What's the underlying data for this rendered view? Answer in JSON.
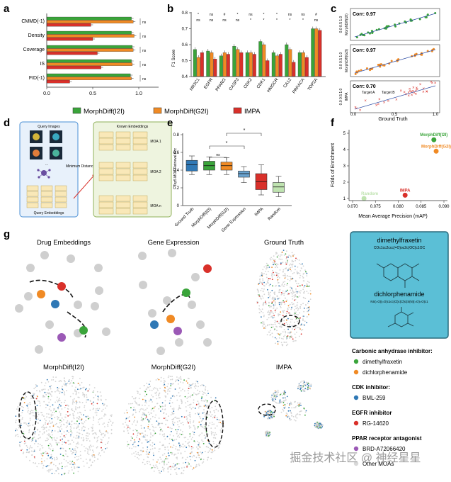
{
  "panel_labels": {
    "a": "a",
    "b": "b",
    "c": "c",
    "d": "d",
    "e": "e",
    "f": "f",
    "g": "g"
  },
  "colors": {
    "green": "#3aa43a",
    "orange": "#f08a24",
    "red": "#d9302a",
    "blue": "#2f78b5",
    "light_green": "#bfe3b0",
    "grey": "#cfcfcf",
    "teal_box": "#5bbfd6"
  },
  "legend_main": {
    "items": [
      {
        "label": "MorphDiff(I2I)",
        "color": "#3aa43a"
      },
      {
        "label": "MorphDiff(G2I)",
        "color": "#f08a24"
      },
      {
        "label": "IMPA",
        "color": "#d9302a"
      }
    ]
  },
  "chart_data": [
    {
      "id": "a",
      "type": "bar",
      "orientation": "horizontal",
      "categories": [
        "CMMD(-1)",
        "Density",
        "Coverage",
        "IS",
        "FID(-1)"
      ],
      "series": [
        {
          "name": "MorphDiff(I2I)",
          "values": [
            0.92,
            0.92,
            0.93,
            0.92,
            0.91
          ]
        },
        {
          "name": "MorphDiff(G2I)",
          "values": [
            0.94,
            0.95,
            0.94,
            0.93,
            0.92
          ]
        },
        {
          "name": "IMPA",
          "values": [
            0.48,
            0.5,
            0.55,
            0.59,
            0.25
          ]
        }
      ],
      "ticks": [
        "0.0",
        "0.5",
        "1.0"
      ],
      "xlim": [
        0,
        1.1
      ],
      "sig": [
        "ns",
        "ns",
        "ns",
        "ns",
        "ns"
      ]
    },
    {
      "id": "b",
      "type": "bar",
      "ylabel": "F1 Score",
      "ylim": [
        0.4,
        0.8
      ],
      "yticks": [
        "0.4",
        "0.5",
        "0.6",
        "0.7",
        "0.8"
      ],
      "categories": [
        "NR3C1",
        "EGFR",
        "PPARG",
        "CASP3",
        "CDK2",
        "CDK1",
        "HMGCR",
        "CA12",
        "PRKACA",
        "TOP2A"
      ],
      "series": [
        {
          "name": "MorphDiff(I2I)",
          "values": [
            0.57,
            0.56,
            0.53,
            0.59,
            0.55,
            0.62,
            0.55,
            0.6,
            0.55,
            0.7
          ]
        },
        {
          "name": "MorphDiff(G2I)",
          "values": [
            0.52,
            0.55,
            0.55,
            0.57,
            0.55,
            0.6,
            0.53,
            0.57,
            0.55,
            0.7
          ]
        },
        {
          "name": "IMPA",
          "values": [
            0.55,
            0.51,
            0.54,
            0.55,
            0.54,
            0.5,
            0.54,
            0.49,
            0.52,
            0.69
          ]
        }
      ],
      "sig_top": [
        "*",
        "ns",
        "#",
        "*",
        "ns",
        "*",
        "*",
        "ns",
        "ns",
        "#"
      ],
      "sig_bottom": [
        "ns",
        "ns",
        "ns",
        "ns",
        "*",
        "*",
        "*",
        "*",
        "*",
        "ns"
      ]
    },
    {
      "id": "c",
      "type": "scatter",
      "xlabel": "Ground Truth",
      "ylabel": "MorphDiff(I2I)",
      "xticks": [
        "0.0",
        "0.5",
        "1.0"
      ],
      "panels": [
        {
          "name": "MorphDiff(I2I)",
          "corr": "Corr: 0.97"
        },
        {
          "name": "MorphDiff(G2I)",
          "corr": "Corr: 0.97"
        },
        {
          "name": "IMPA",
          "corr": "Corr: 0.70",
          "legend": [
            "Target A",
            "Target B"
          ]
        }
      ]
    },
    {
      "id": "e",
      "type": "box",
      "ylabel": "Top5 MOA Retrieval Acc",
      "ylim": [
        0,
        0.8
      ],
      "yticks": [
        "0",
        "0.2",
        "0.4",
        "0.6",
        "0.8"
      ],
      "categories": [
        "Ground Truth",
        "MorphDiff(I2I)",
        "MorphDiff(G2I)",
        "Gene Expression",
        "IMPA",
        "Random"
      ],
      "series": [
        {
          "name": "Ground Truth",
          "q": [
            0.35,
            0.39,
            0.46,
            0.51,
            0.56
          ]
        },
        {
          "name": "MorphDiff(I2I)",
          "q": [
            0.35,
            0.4,
            0.45,
            0.5,
            0.55
          ]
        },
        {
          "name": "MorphDiff(G2I)",
          "q": [
            0.35,
            0.4,
            0.45,
            0.49,
            0.54
          ]
        },
        {
          "name": "Gene Expression",
          "q": [
            0.26,
            0.32,
            0.36,
            0.39,
            0.44
          ]
        },
        {
          "name": "IMPA",
          "q": [
            0.12,
            0.18,
            0.27,
            0.36,
            0.46
          ]
        },
        {
          "name": "Random",
          "q": [
            0.1,
            0.15,
            0.21,
            0.26,
            0.33
          ]
        }
      ],
      "sig": [
        "ns",
        "*",
        "*"
      ]
    },
    {
      "id": "f",
      "type": "scatter",
      "xlabel": "Mean Average Precision (mAP)",
      "ylabel": "Folds of Enrichment",
      "xlim": [
        0.07,
        0.09
      ],
      "ylim": [
        1,
        5
      ],
      "xticks": [
        "0.070",
        "0.075",
        "0.080",
        "0.085",
        "0.090"
      ],
      "yticks": [
        "1",
        "2",
        "3",
        "4",
        "5"
      ],
      "points": [
        {
          "name": "MorphDiff(I2I)",
          "x": 0.0878,
          "y": 4.6
        },
        {
          "name": "MorphDiff(G2I)",
          "x": 0.0883,
          "y": 3.9
        },
        {
          "name": "IMPA",
          "x": 0.0815,
          "y": 1.2
        },
        {
          "name": "Random",
          "x": 0.0725,
          "y": 1.0
        }
      ]
    }
  ],
  "panel_d": {
    "query_images": "Query Images",
    "known_embeddings": "Known Embeddings",
    "query_embeddings": "Query Embeddings",
    "minimum_distance": "Minimum Distance",
    "moa": [
      "MOA 1",
      "MOA 2",
      "MOA n"
    ],
    "ellipsis": "..."
  },
  "panel_g": {
    "titles": [
      "Drug Embeddings",
      "Gene Expression",
      "Ground Truth",
      "MorphDiff(I2I)",
      "MorphDiff(G2I)",
      "IMPA"
    ],
    "struct_box": {
      "name1": "dimethylfraxetin",
      "smiles1": "COc1cc2ccc(=O)oc2c(OC)c1OC",
      "name2": "dichlorphenamide",
      "smiles2": "NS(=O)(=O)c1cc(Cl)c(Cl)c(S(N)(=O)=O)c1"
    },
    "legend": [
      {
        "header": "Carbonic anhydrase inhibitor:",
        "items": [
          {
            "label": "dimethylfraxetin",
            "color": "#3aa43a"
          },
          {
            "label": "dichlorphenamide",
            "color": "#f08a24"
          }
        ]
      },
      {
        "header": "CDK inhibitor:",
        "items": [
          {
            "label": "BML-259",
            "color": "#2f78b5"
          }
        ]
      },
      {
        "header": "EGFR inhibitor",
        "items": [
          {
            "label": "RG-14620",
            "color": "#d9302a"
          }
        ]
      },
      {
        "header": "PPAR receptor antagonist",
        "items": [
          {
            "label": "BRD-A72066420",
            "color": "#9b59b6"
          }
        ]
      },
      {
        "header": "",
        "items": [
          {
            "label": "Other MOAs",
            "color": "#d8d8d8"
          }
        ]
      }
    ]
  },
  "watermark": "掘金技术社区 @ 神经星星"
}
